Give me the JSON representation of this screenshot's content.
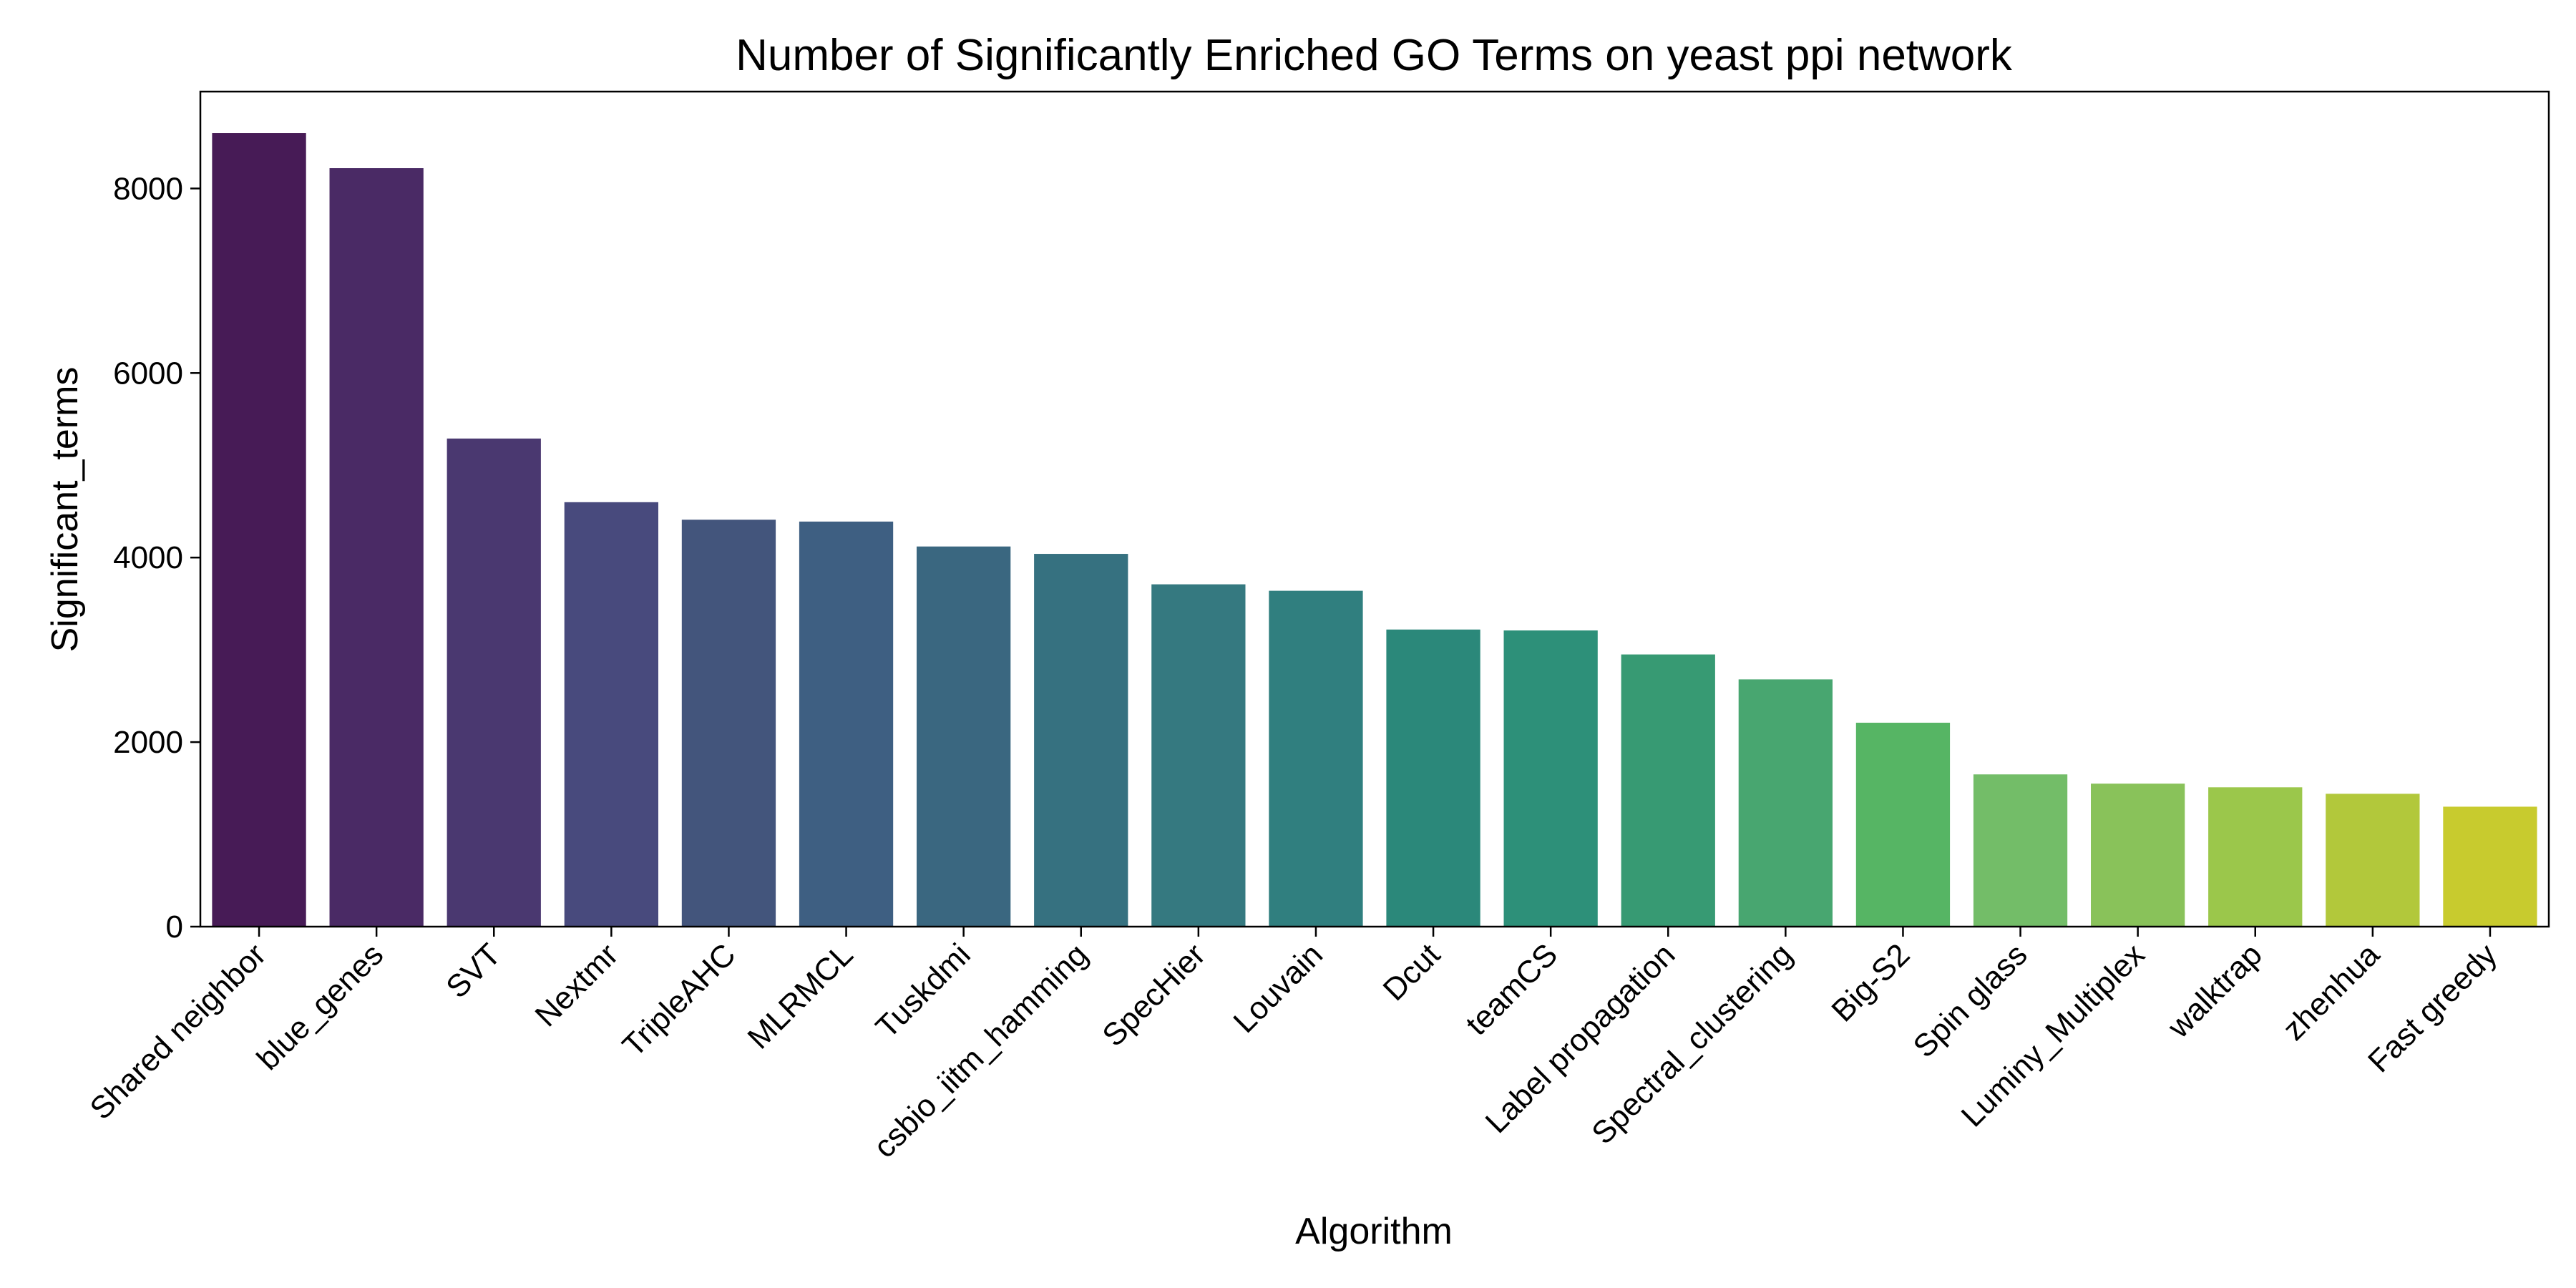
{
  "chart_data": {
    "type": "bar",
    "title": "Number of Significantly Enriched GO Terms on yeast ppi network",
    "xlabel": "Algorithm",
    "ylabel": "Significant_terms",
    "ylim": [
      0,
      9050
    ],
    "yticks": [
      0,
      2000,
      4000,
      6000,
      8000
    ],
    "grid": false,
    "categories": [
      "Shared neighbor",
      "blue_genes",
      "SVT",
      "Nextmr",
      "TripleAHC",
      "MLRMCL",
      "Tuskdmi",
      "csbio_iitm_hamming",
      "SpecHier",
      "Louvain",
      "Dcut",
      "teamCS",
      "Label propagation",
      "Spectral_clustering",
      "Big-S2",
      "Spin glass",
      "Luminy_Multiplex",
      "walktrap",
      "zhenhua",
      "Fast greedy"
    ],
    "values": [
      8600,
      8220,
      5290,
      4600,
      4410,
      4390,
      4120,
      4040,
      3710,
      3640,
      3220,
      3210,
      2950,
      2680,
      2210,
      1650,
      1550,
      1510,
      1440,
      1300
    ],
    "colors": [
      "#471b56",
      "#4a2a65",
      "#4a3870",
      "#484a7d",
      "#43557c",
      "#3e5f82",
      "#3a6780",
      "#367180",
      "#357980",
      "#307f7f",
      "#2b887a",
      "#2d9079",
      "#379a73",
      "#48a670",
      "#56b564",
      "#73bd68",
      "#89c25a",
      "#9bc74b",
      "#b2c83b",
      "#c8cb2e"
    ]
  }
}
